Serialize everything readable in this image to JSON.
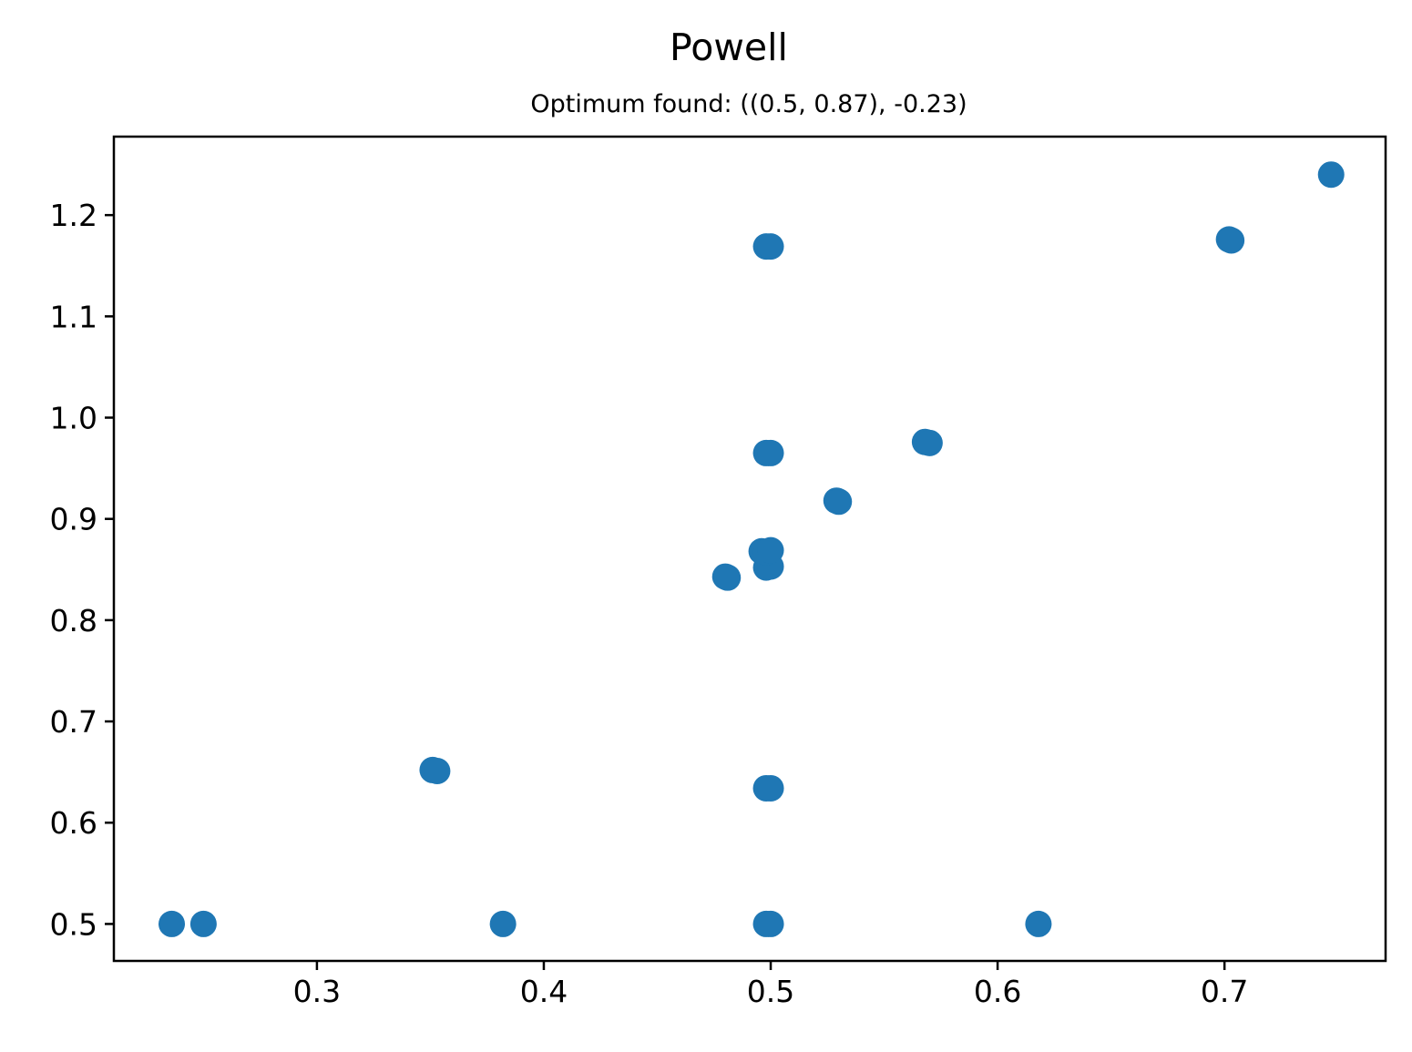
{
  "chart_data": {
    "type": "scatter",
    "title": "Powell",
    "subtitle": "Optimum found: ((0.5, 0.87), -0.23)",
    "xlabel": "",
    "ylabel": "",
    "xlim": [
      0.2105,
      0.771
    ],
    "ylim": [
      0.4635,
      1.2775
    ],
    "xticks": [
      0.3,
      0.4,
      0.5,
      0.6,
      0.7
    ],
    "xtick_labels": [
      "0.3",
      "0.4",
      "0.5",
      "0.6",
      "0.7"
    ],
    "yticks": [
      0.5,
      0.6,
      0.7,
      0.8,
      0.9,
      1.0,
      1.1,
      1.2
    ],
    "ytick_labels": [
      "0.5",
      "0.6",
      "0.7",
      "0.8",
      "0.9",
      "1.0",
      "1.1",
      "1.2"
    ],
    "grid": false,
    "marker_color": "#1f77b4",
    "points": [
      {
        "x": 0.236,
        "y": 0.5
      },
      {
        "x": 0.25,
        "y": 0.5
      },
      {
        "x": 0.382,
        "y": 0.5
      },
      {
        "x": 0.498,
        "y": 0.5
      },
      {
        "x": 0.5,
        "y": 0.5
      },
      {
        "x": 0.618,
        "y": 0.5
      },
      {
        "x": 0.351,
        "y": 0.652
      },
      {
        "x": 0.353,
        "y": 0.651
      },
      {
        "x": 0.498,
        "y": 0.634
      },
      {
        "x": 0.5,
        "y": 0.634
      },
      {
        "x": 0.48,
        "y": 0.843
      },
      {
        "x": 0.481,
        "y": 0.842
      },
      {
        "x": 0.498,
        "y": 0.852
      },
      {
        "x": 0.5,
        "y": 0.853
      },
      {
        "x": 0.496,
        "y": 0.868
      },
      {
        "x": 0.498,
        "y": 0.867
      },
      {
        "x": 0.5,
        "y": 0.869
      },
      {
        "x": 0.529,
        "y": 0.918
      },
      {
        "x": 0.53,
        "y": 0.917
      },
      {
        "x": 0.498,
        "y": 0.965
      },
      {
        "x": 0.5,
        "y": 0.965
      },
      {
        "x": 0.568,
        "y": 0.976
      },
      {
        "x": 0.57,
        "y": 0.975
      },
      {
        "x": 0.498,
        "y": 1.169
      },
      {
        "x": 0.5,
        "y": 1.169
      },
      {
        "x": 0.702,
        "y": 1.176
      },
      {
        "x": 0.703,
        "y": 1.175
      },
      {
        "x": 0.747,
        "y": 1.24
      }
    ]
  }
}
